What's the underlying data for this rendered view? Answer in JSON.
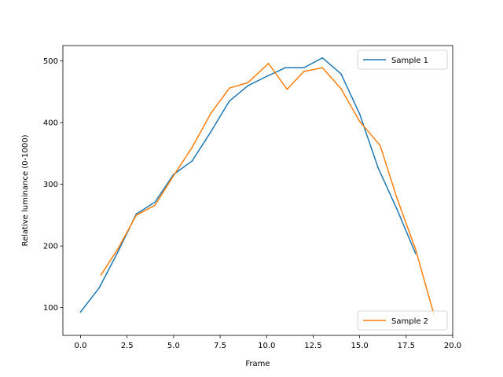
{
  "chart_data": {
    "type": "line",
    "title": "",
    "xlabel": "Frame",
    "ylabel": "Relative luminance (0-1000)",
    "xlim": [
      -0.95,
      20.0
    ],
    "ylim": [
      55,
      525
    ],
    "xticks": [
      0.0,
      2.5,
      5.0,
      7.5,
      10.0,
      12.5,
      15.0,
      17.5,
      20.0
    ],
    "xtick_labels": [
      "0.0",
      "2.5",
      "5.0",
      "7.5",
      "10.0",
      "12.5",
      "15.0",
      "17.5",
      "20.0"
    ],
    "yticks": [
      100,
      200,
      300,
      400,
      500
    ],
    "ytick_labels": [
      "100",
      "200",
      "300",
      "400",
      "500"
    ],
    "grid": false,
    "series": [
      {
        "name": "Sample 1",
        "color": "#1f77b4",
        "legend_position": "top-right",
        "x": [
          0,
          1,
          2,
          3,
          4,
          5,
          6,
          7,
          8,
          9,
          10,
          11,
          12,
          13,
          14,
          15,
          16,
          17,
          18
        ],
        "y": [
          93,
          132,
          190,
          252,
          271,
          316,
          338,
          385,
          435,
          460,
          475,
          489,
          489,
          505,
          479,
          414,
          326,
          260,
          188
        ]
      },
      {
        "name": "Sample 2",
        "color": "#ff7f0e",
        "legend_position": "bottom-right",
        "x": [
          1.1,
          2,
          3,
          4,
          5,
          6,
          7,
          8,
          9,
          10.1,
          11.1,
          12,
          13,
          14,
          15,
          16.1,
          17,
          18,
          19
        ],
        "y": [
          153,
          195,
          250,
          266,
          314,
          360,
          415,
          456,
          465,
          496,
          454,
          483,
          489,
          455,
          402,
          363,
          278,
          195,
          88
        ]
      }
    ]
  }
}
